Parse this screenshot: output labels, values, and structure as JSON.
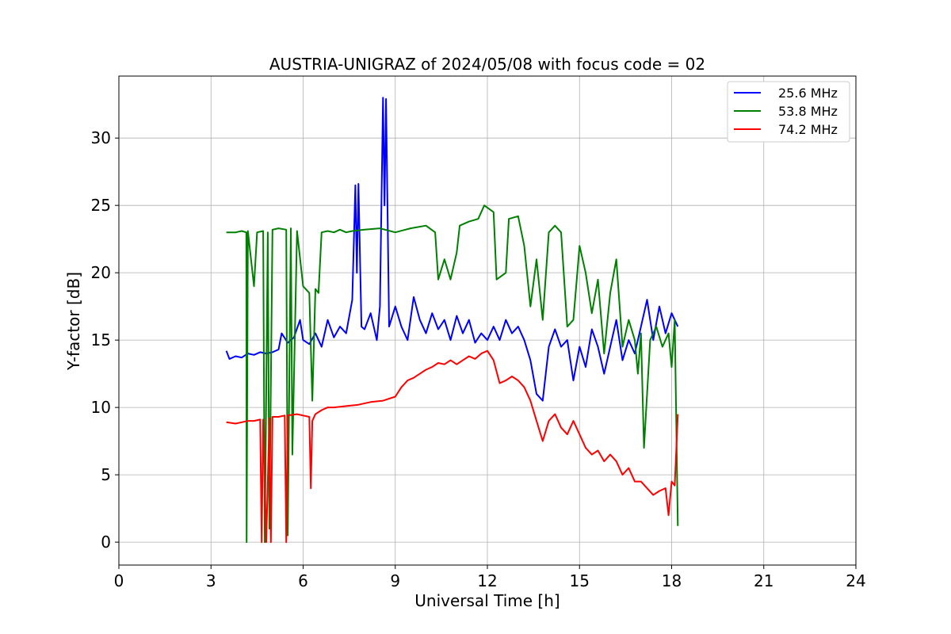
{
  "chart_data": {
    "type": "line",
    "title": "AUSTRIA-UNIGRAZ of 2024/05/08 with focus code = 02",
    "xlabel": "Universal Time [h]",
    "ylabel": "Y-factor [dB]",
    "xlim": [
      0,
      24
    ],
    "ylim": [
      -1.7,
      34.6
    ],
    "xticks": [
      0,
      3,
      6,
      9,
      12,
      15,
      18,
      21,
      24
    ],
    "yticks": [
      0,
      5,
      10,
      15,
      20,
      25,
      30
    ],
    "grid": true,
    "legend_position": "top-right",
    "series": [
      {
        "name": "25.6 MHz",
        "color": "#0000ff",
        "points": [
          [
            3.5,
            14.2
          ],
          [
            3.6,
            13.6
          ],
          [
            3.8,
            13.8
          ],
          [
            4.0,
            13.7
          ],
          [
            4.2,
            14.0
          ],
          [
            4.4,
            13.9
          ],
          [
            4.6,
            14.1
          ],
          [
            4.8,
            14.0
          ],
          [
            5.0,
            14.1
          ],
          [
            5.2,
            14.3
          ],
          [
            5.3,
            15.5
          ],
          [
            5.5,
            14.8
          ],
          [
            5.7,
            15.2
          ],
          [
            5.9,
            16.5
          ],
          [
            6.0,
            15.0
          ],
          [
            6.2,
            14.7
          ],
          [
            6.4,
            15.5
          ],
          [
            6.6,
            14.5
          ],
          [
            6.8,
            16.5
          ],
          [
            7.0,
            15.2
          ],
          [
            7.2,
            16.0
          ],
          [
            7.4,
            15.5
          ],
          [
            7.6,
            18.0
          ],
          [
            7.7,
            26.5
          ],
          [
            7.75,
            20.0
          ],
          [
            7.8,
            26.6
          ],
          [
            7.9,
            16.0
          ],
          [
            8.0,
            15.8
          ],
          [
            8.2,
            17.0
          ],
          [
            8.4,
            15.0
          ],
          [
            8.5,
            17.5
          ],
          [
            8.6,
            33.0
          ],
          [
            8.65,
            25.0
          ],
          [
            8.7,
            32.9
          ],
          [
            8.8,
            16.0
          ],
          [
            9.0,
            17.5
          ],
          [
            9.2,
            16.0
          ],
          [
            9.4,
            15.0
          ],
          [
            9.6,
            18.2
          ],
          [
            9.8,
            16.5
          ],
          [
            10.0,
            15.5
          ],
          [
            10.2,
            17.0
          ],
          [
            10.4,
            15.8
          ],
          [
            10.6,
            16.5
          ],
          [
            10.8,
            15.0
          ],
          [
            11.0,
            16.8
          ],
          [
            11.2,
            15.5
          ],
          [
            11.4,
            16.5
          ],
          [
            11.6,
            14.8
          ],
          [
            11.8,
            15.5
          ],
          [
            12.0,
            15.0
          ],
          [
            12.2,
            16.0
          ],
          [
            12.4,
            15.0
          ],
          [
            12.6,
            16.5
          ],
          [
            12.8,
            15.5
          ],
          [
            13.0,
            16.0
          ],
          [
            13.2,
            15.0
          ],
          [
            13.4,
            13.5
          ],
          [
            13.6,
            11.0
          ],
          [
            13.8,
            10.5
          ],
          [
            14.0,
            14.5
          ],
          [
            14.2,
            15.8
          ],
          [
            14.4,
            14.5
          ],
          [
            14.6,
            15.0
          ],
          [
            14.8,
            12.0
          ],
          [
            15.0,
            14.5
          ],
          [
            15.2,
            13.0
          ],
          [
            15.4,
            15.8
          ],
          [
            15.6,
            14.5
          ],
          [
            15.8,
            12.5
          ],
          [
            16.0,
            14.5
          ],
          [
            16.2,
            16.5
          ],
          [
            16.4,
            13.5
          ],
          [
            16.6,
            15.0
          ],
          [
            16.8,
            14.0
          ],
          [
            17.0,
            16.0
          ],
          [
            17.2,
            18.0
          ],
          [
            17.4,
            15.0
          ],
          [
            17.6,
            17.5
          ],
          [
            17.8,
            15.5
          ],
          [
            18.0,
            17.0
          ],
          [
            18.2,
            16.0
          ]
        ]
      },
      {
        "name": "53.8 MHz",
        "color": "#008000",
        "points": [
          [
            3.5,
            23.0
          ],
          [
            3.8,
            23.0
          ],
          [
            4.0,
            23.1
          ],
          [
            4.15,
            23.0
          ],
          [
            4.16,
            0.0
          ],
          [
            4.2,
            23.1
          ],
          [
            4.4,
            19.0
          ],
          [
            4.5,
            23.0
          ],
          [
            4.7,
            23.1
          ],
          [
            4.75,
            0.0
          ],
          [
            4.85,
            23.0
          ],
          [
            4.9,
            1.0
          ],
          [
            5.0,
            23.2
          ],
          [
            5.2,
            23.3
          ],
          [
            5.45,
            23.2
          ],
          [
            5.5,
            0.5
          ],
          [
            5.6,
            23.3
          ],
          [
            5.65,
            6.5
          ],
          [
            5.8,
            23.1
          ],
          [
            6.0,
            19.0
          ],
          [
            6.2,
            18.5
          ],
          [
            6.3,
            10.5
          ],
          [
            6.4,
            18.8
          ],
          [
            6.5,
            18.5
          ],
          [
            6.6,
            23.0
          ],
          [
            6.8,
            23.1
          ],
          [
            7.0,
            23.0
          ],
          [
            7.2,
            23.2
          ],
          [
            7.4,
            23.0
          ],
          [
            7.6,
            23.1
          ],
          [
            8.0,
            23.2
          ],
          [
            8.5,
            23.3
          ],
          [
            9.0,
            23.0
          ],
          [
            9.5,
            23.3
          ],
          [
            10.0,
            23.5
          ],
          [
            10.3,
            23.0
          ],
          [
            10.4,
            19.5
          ],
          [
            10.6,
            21.0
          ],
          [
            10.8,
            19.5
          ],
          [
            11.0,
            21.5
          ],
          [
            11.1,
            23.5
          ],
          [
            11.4,
            23.8
          ],
          [
            11.7,
            24.0
          ],
          [
            11.9,
            25.0
          ],
          [
            12.2,
            24.5
          ],
          [
            12.3,
            19.5
          ],
          [
            12.6,
            20.0
          ],
          [
            12.7,
            24.0
          ],
          [
            13.0,
            24.2
          ],
          [
            13.2,
            22.0
          ],
          [
            13.4,
            17.5
          ],
          [
            13.6,
            21.0
          ],
          [
            13.8,
            16.5
          ],
          [
            14.0,
            23.0
          ],
          [
            14.2,
            23.5
          ],
          [
            14.4,
            23.0
          ],
          [
            14.6,
            16.0
          ],
          [
            14.8,
            16.5
          ],
          [
            15.0,
            22.0
          ],
          [
            15.2,
            20.0
          ],
          [
            15.4,
            17.0
          ],
          [
            15.6,
            19.5
          ],
          [
            15.8,
            14.0
          ],
          [
            16.0,
            18.5
          ],
          [
            16.2,
            21.0
          ],
          [
            16.4,
            14.5
          ],
          [
            16.6,
            16.5
          ],
          [
            16.8,
            15.0
          ],
          [
            16.9,
            12.5
          ],
          [
            17.0,
            15.5
          ],
          [
            17.1,
            7.0
          ],
          [
            17.3,
            15.0
          ],
          [
            17.5,
            16.0
          ],
          [
            17.7,
            14.5
          ],
          [
            17.9,
            15.5
          ],
          [
            18.0,
            13.0
          ],
          [
            18.1,
            16.5
          ],
          [
            18.2,
            1.2
          ]
        ]
      },
      {
        "name": "74.2 MHz",
        "color": "#ff0000",
        "points": [
          [
            3.5,
            8.9
          ],
          [
            3.8,
            8.8
          ],
          [
            4.0,
            8.9
          ],
          [
            4.2,
            9.0
          ],
          [
            4.4,
            9.0
          ],
          [
            4.6,
            9.1
          ],
          [
            4.65,
            0.0
          ],
          [
            4.7,
            9.1
          ],
          [
            4.8,
            0.0
          ],
          [
            4.9,
            9.2
          ],
          [
            4.95,
            0.0
          ],
          [
            5.0,
            9.3
          ],
          [
            5.2,
            9.3
          ],
          [
            5.4,
            9.4
          ],
          [
            5.45,
            0.0
          ],
          [
            5.5,
            9.4
          ],
          [
            5.8,
            9.5
          ],
          [
            6.0,
            9.4
          ],
          [
            6.2,
            9.3
          ],
          [
            6.25,
            4.0
          ],
          [
            6.3,
            9.0
          ],
          [
            6.4,
            9.5
          ],
          [
            6.6,
            9.8
          ],
          [
            6.8,
            10.0
          ],
          [
            7.0,
            10.0
          ],
          [
            7.4,
            10.1
          ],
          [
            7.8,
            10.2
          ],
          [
            8.2,
            10.4
          ],
          [
            8.6,
            10.5
          ],
          [
            9.0,
            10.8
          ],
          [
            9.2,
            11.5
          ],
          [
            9.4,
            12.0
          ],
          [
            9.6,
            12.2
          ],
          [
            9.8,
            12.5
          ],
          [
            10.0,
            12.8
          ],
          [
            10.2,
            13.0
          ],
          [
            10.4,
            13.3
          ],
          [
            10.6,
            13.2
          ],
          [
            10.8,
            13.5
          ],
          [
            11.0,
            13.2
          ],
          [
            11.2,
            13.5
          ],
          [
            11.4,
            13.8
          ],
          [
            11.6,
            13.6
          ],
          [
            11.8,
            14.0
          ],
          [
            12.0,
            14.2
          ],
          [
            12.2,
            13.5
          ],
          [
            12.4,
            11.8
          ],
          [
            12.6,
            12.0
          ],
          [
            12.8,
            12.3
          ],
          [
            13.0,
            12.0
          ],
          [
            13.2,
            11.5
          ],
          [
            13.4,
            10.5
          ],
          [
            13.6,
            9.0
          ],
          [
            13.8,
            7.5
          ],
          [
            14.0,
            9.0
          ],
          [
            14.2,
            9.5
          ],
          [
            14.4,
            8.5
          ],
          [
            14.6,
            8.0
          ],
          [
            14.8,
            9.0
          ],
          [
            15.0,
            8.0
          ],
          [
            15.2,
            7.0
          ],
          [
            15.4,
            6.5
          ],
          [
            15.6,
            6.8
          ],
          [
            15.8,
            6.0
          ],
          [
            16.0,
            6.5
          ],
          [
            16.2,
            6.0
          ],
          [
            16.4,
            5.0
          ],
          [
            16.6,
            5.5
          ],
          [
            16.8,
            4.5
          ],
          [
            17.0,
            4.5
          ],
          [
            17.2,
            4.0
          ],
          [
            17.4,
            3.5
          ],
          [
            17.6,
            3.8
          ],
          [
            17.8,
            4.0
          ],
          [
            17.9,
            2.0
          ],
          [
            18.0,
            4.5
          ],
          [
            18.1,
            4.2
          ],
          [
            18.2,
            9.5
          ]
        ]
      }
    ]
  }
}
